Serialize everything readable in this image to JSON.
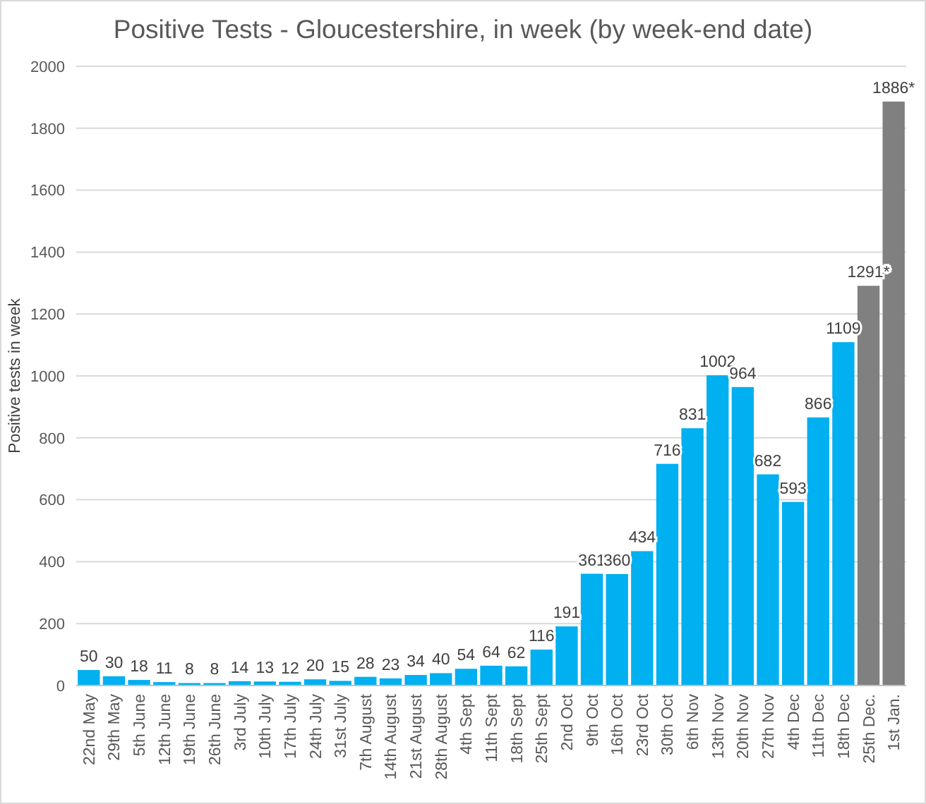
{
  "chart_data": {
    "type": "bar",
    "title": "Positive Tests - Gloucestershire, in week (by week-end date)",
    "ylabel": "Positive tests in week",
    "categories": [
      "22nd May",
      "29th May",
      "5th June",
      "12th June",
      "19th June",
      "26th June",
      "3rd July",
      "10th July",
      "17th July",
      "24th July",
      "31st July",
      "7th August",
      "14th August",
      "21st August",
      "28th August",
      "4th Sept",
      "11th Sept",
      "18th Sept",
      "25th Sept",
      "2nd Oct",
      "9th Oct",
      "16th Oct",
      "23rd Oct",
      "30th Oct",
      "6th Nov",
      "13th Nov",
      "20th Nov",
      "27th Nov",
      "4th Dec",
      "11th Dec",
      "18th Dec",
      "25th Dec.",
      "1st Jan."
    ],
    "values": [
      50,
      30,
      18,
      11,
      8,
      8,
      14,
      13,
      12,
      20,
      15,
      28,
      23,
      34,
      40,
      54,
      64,
      62,
      116,
      191,
      361,
      360,
      434,
      716,
      831,
      1002,
      964,
      682,
      593,
      866,
      1109,
      1291,
      1886
    ],
    "colors": [
      "#00b0f0",
      "#00b0f0",
      "#00b0f0",
      "#00b0f0",
      "#00b0f0",
      "#00b0f0",
      "#00b0f0",
      "#00b0f0",
      "#00b0f0",
      "#00b0f0",
      "#00b0f0",
      "#00b0f0",
      "#00b0f0",
      "#00b0f0",
      "#00b0f0",
      "#00b0f0",
      "#00b0f0",
      "#00b0f0",
      "#00b0f0",
      "#00b0f0",
      "#00b0f0",
      "#00b0f0",
      "#00b0f0",
      "#00b0f0",
      "#00b0f0",
      "#00b0f0",
      "#00b0f0",
      "#00b0f0",
      "#00b0f0",
      "#00b0f0",
      "#00b0f0",
      "#808080",
      "#808080"
    ],
    "value_labels": [
      "50",
      "30",
      "18",
      "11",
      "8",
      "8",
      "14",
      "13",
      "12",
      "20",
      "15",
      "28",
      "23",
      "34",
      "40",
      "54",
      "64",
      "62",
      "116",
      "191",
      "361",
      "360",
      "434",
      "716",
      "831",
      "1002",
      "964",
      "682",
      "593",
      "866",
      "1109",
      "1291*",
      "1886*"
    ],
    "ylim": [
      0,
      2000
    ],
    "yticks": [
      0,
      200,
      400,
      600,
      800,
      1000,
      1200,
      1400,
      1600,
      1800,
      2000
    ],
    "grid": "y"
  }
}
